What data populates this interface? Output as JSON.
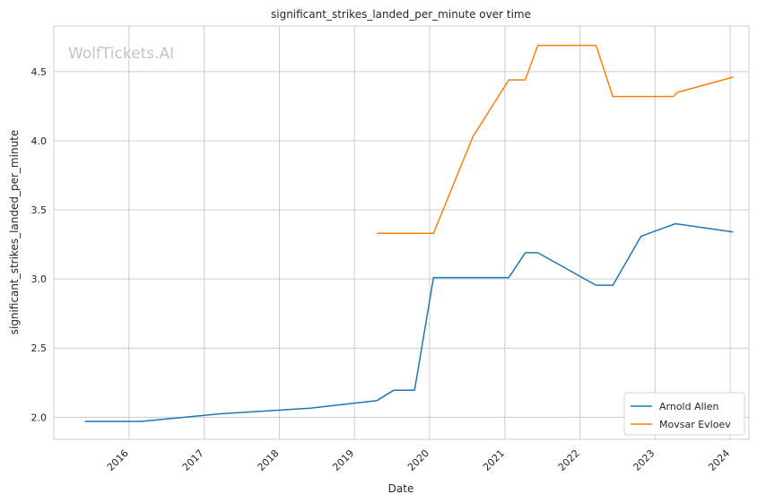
{
  "watermark": "WolfTickets.AI",
  "chart_data": {
    "type": "line",
    "title": "significant_strikes_landed_per_minute over time",
    "xlabel": "Date",
    "ylabel": "significant_strikes_landed_per_minute",
    "x_type": "date",
    "xlim": [
      "2015-01-01",
      "2024-04-01"
    ],
    "ylim": [
      1.84,
      4.83
    ],
    "x_ticks": [
      "2016",
      "2017",
      "2018",
      "2019",
      "2020",
      "2021",
      "2022",
      "2023",
      "2024"
    ],
    "y_ticks": [
      "2.0",
      "2.5",
      "3.0",
      "3.5",
      "4.0",
      "4.5"
    ],
    "grid": true,
    "legend_position": "bottom-right",
    "series": [
      {
        "name": "Arnold Allen",
        "color": "#1f77b4",
        "points": [
          [
            "2015-06-01",
            1.97
          ],
          [
            "2016-03-01",
            1.97
          ],
          [
            "2017-03-20",
            2.025
          ],
          [
            "2018-06-01",
            2.065
          ],
          [
            "2019-03-20",
            2.115
          ],
          [
            "2019-04-20",
            2.12
          ],
          [
            "2019-07-10",
            2.195
          ],
          [
            "2019-10-20",
            2.195
          ],
          [
            "2020-01-20",
            3.01
          ],
          [
            "2021-01-20",
            3.01
          ],
          [
            "2021-04-10",
            3.19
          ],
          [
            "2021-06-10",
            3.19
          ],
          [
            "2022-03-20",
            2.955
          ],
          [
            "2022-06-10",
            2.955
          ],
          [
            "2022-10-25",
            3.31
          ],
          [
            "2023-04-10",
            3.4
          ],
          [
            "2024-01-15",
            3.34
          ]
        ]
      },
      {
        "name": "Movsar Evloev",
        "color": "#ff7f0e",
        "points": [
          [
            "2019-04-20",
            3.33
          ],
          [
            "2020-01-20",
            3.33
          ],
          [
            "2020-07-30",
            4.03
          ],
          [
            "2021-01-20",
            4.44
          ],
          [
            "2021-04-10",
            4.44
          ],
          [
            "2021-06-10",
            4.69
          ],
          [
            "2022-03-20",
            4.69
          ],
          [
            "2022-06-10",
            4.32
          ],
          [
            "2023-04-01",
            4.32
          ],
          [
            "2023-04-20",
            4.35
          ],
          [
            "2024-01-15",
            4.46
          ]
        ]
      }
    ]
  }
}
